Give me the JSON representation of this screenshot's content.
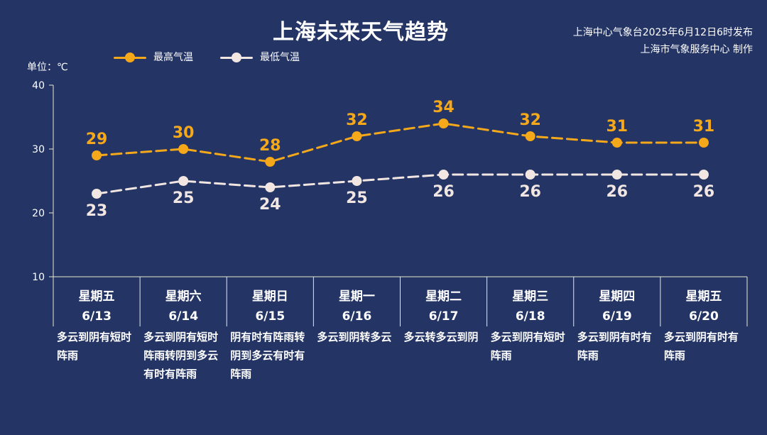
{
  "header": {
    "title": "上海未来天气趋势",
    "publisher_line1": "上海中心气象台2025年6月12日6时发布",
    "publisher_line2": "上海市气象服务中心 制作"
  },
  "colors": {
    "background": "#233465",
    "high": "#f5a81a",
    "low": "#f1e6e1",
    "axis": "#e8e8d0"
  },
  "chart_data": {
    "type": "line",
    "unit_label": "单位：℃",
    "yticks": [
      10,
      20,
      30,
      40
    ],
    "ylim": [
      10,
      40
    ],
    "grid": false,
    "legend_position": "top-left",
    "categories": [
      {
        "day": "星期五",
        "date": "6/13"
      },
      {
        "day": "星期六",
        "date": "6/14"
      },
      {
        "day": "星期日",
        "date": "6/15"
      },
      {
        "day": "星期一",
        "date": "6/16"
      },
      {
        "day": "星期二",
        "date": "6/17"
      },
      {
        "day": "星期三",
        "date": "6/18"
      },
      {
        "day": "星期四",
        "date": "6/19"
      },
      {
        "day": "星期五",
        "date": "6/20"
      }
    ],
    "series": [
      {
        "name": "最高气温",
        "values": [
          29,
          30,
          28,
          32,
          34,
          32,
          31,
          31
        ],
        "color": "#f5a81a"
      },
      {
        "name": "最低气温",
        "values": [
          23,
          25,
          24,
          25,
          26,
          26,
          26,
          26
        ],
        "color": "#f1e6e1"
      }
    ],
    "weather_descriptions": [
      "多云到阴有短时阵雨",
      "多云到阴有短时阵雨转阴到多云有时有阵雨",
      "阴有时有阵雨转阴到多云有时有阵雨",
      "多云到阴转多云",
      "多云转多云到阴",
      "多云到阴有短时阵雨",
      "多云到阴有时有阵雨",
      "多云到阴有时有阵雨"
    ]
  }
}
